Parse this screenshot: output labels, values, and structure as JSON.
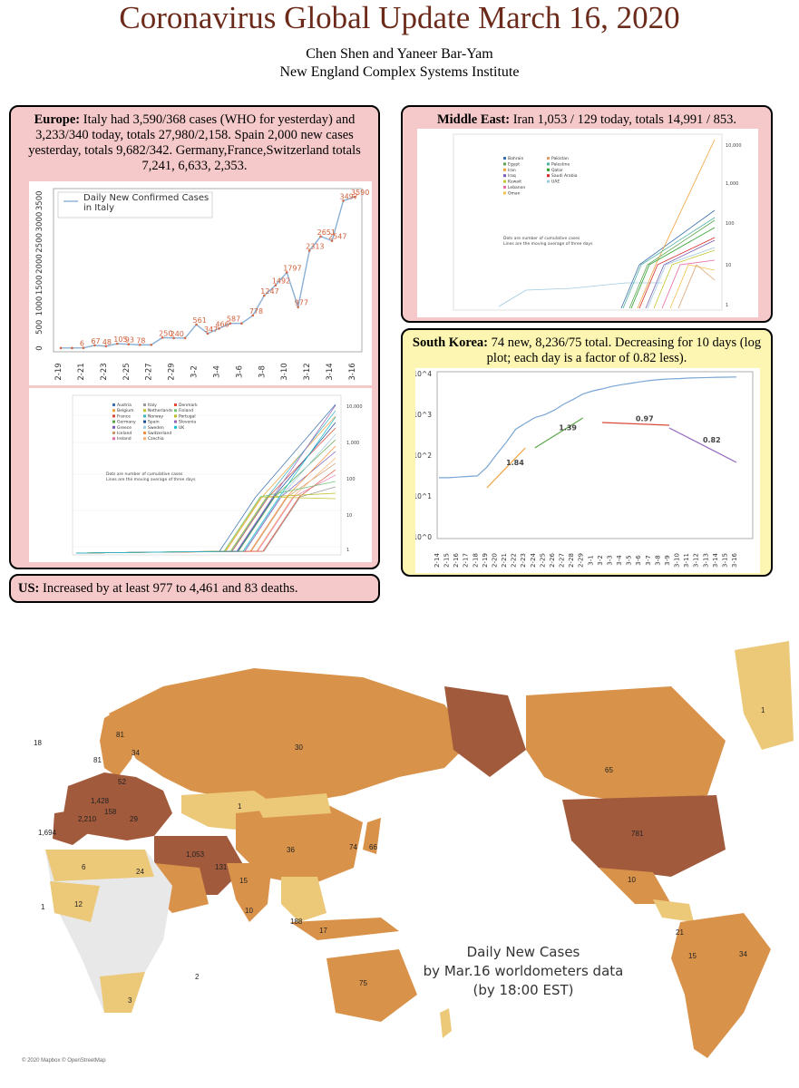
{
  "header": {
    "title": "Coronavirus Global Update March 16, 2020",
    "authors": "Chen Shen and Yaneer Bar-Yam",
    "institute": "New England Complex Systems Institute"
  },
  "europe": {
    "heading": "Europe:",
    "text": " Italy had 3,590/368 cases (WHO for yesterday) and 3,233/340 today, totals 27,980/2,158. Spain 2,000 new cases yesterday, totals 9,682/342. Germany,France,Switzerland totals 7,241, 6,633, 2,353."
  },
  "us": {
    "heading": "US:",
    "text": " Increased by at least 977 to 4,461 and 83 deaths."
  },
  "middle_east": {
    "heading": "Middle East:",
    "text": " Iran 1,053 / 129 today, totals 14,991 / 853."
  },
  "south_korea": {
    "heading": "South Korea:",
    "text": " 74 new, 8,236/75 total. Decreasing for 10 days (log plot; each day is a factor of 0.82 less)."
  },
  "chart_data": [
    {
      "type": "line",
      "legend": "Daily New Confirmed Cases in Italy",
      "x": [
        "2-19",
        "2-20",
        "2-21",
        "2-22",
        "2-23",
        "2-24",
        "2-25",
        "2-26",
        "2-27",
        "2-28",
        "2-29",
        "3-1",
        "3-2",
        "3-3",
        "3-4",
        "3-5",
        "3-6",
        "3-7",
        "3-8",
        "3-9",
        "3-10",
        "3-11",
        "3-12",
        "3-13",
        "3-14",
        "3-15",
        "3-16"
      ],
      "values": [
        3,
        3,
        6,
        67,
        48,
        105,
        93,
        78,
        78,
        250,
        240,
        240,
        561,
        347,
        466,
        587,
        587,
        778,
        1247,
        1492,
        1797,
        977,
        2313,
        2651,
        2547,
        3497,
        3590
      ],
      "labels": [
        "",
        "",
        "6",
        "67",
        "48",
        "105",
        "93",
        "78",
        "",
        "250",
        "240",
        "",
        "561",
        "347",
        "466",
        "587",
        "",
        "778",
        "1247",
        "1492",
        "1797",
        "977",
        "2313",
        "2651",
        "2547",
        "3497",
        "3590"
      ],
      "ylabels": [
        "0",
        "500",
        "1000",
        "1500",
        "2000",
        "2500",
        "3000",
        "3500"
      ],
      "xlabels": [
        "2-19",
        "2-21",
        "2-23",
        "2-25",
        "2-27",
        "2-29",
        "3-2",
        "3-4",
        "3-6",
        "3-8",
        "3-10",
        "3-12",
        "3-14",
        "3-16"
      ],
      "ylim": [
        0,
        3700
      ]
    },
    {
      "type": "line",
      "legend": [
        "Austria",
        "Belgium",
        "France",
        "Germany",
        "Greece",
        "Iceland",
        "Ireland",
        "Italy",
        "Netherlands",
        "Norway",
        "Spain",
        "Sweden",
        "Switzerland",
        "Czechia",
        "Denmark",
        "Finland",
        "Portugal",
        "Slovenia",
        "UK"
      ],
      "annotation": [
        "Dots are number of cumulative cases",
        "Lines are the moving average of three days"
      ],
      "right_ticks": [
        "10,000",
        "1,000",
        "100",
        "10",
        "1"
      ]
    },
    {
      "type": "line",
      "legend": [
        "Bahrain",
        "Egypt",
        "Iran",
        "Iraq",
        "Kuwait",
        "Lebanon",
        "Oman",
        "Pakistan",
        "Palestine",
        "Qatar",
        "Saudi Arabia",
        "UAE"
      ],
      "annotation": [
        "Dots are number of cumulative cases",
        "Lines are the moving average of three days"
      ],
      "right_ticks": [
        "10,000",
        "1,000",
        "100",
        "10",
        "1"
      ]
    },
    {
      "type": "line",
      "scale": "log",
      "x": [
        "2-14",
        "2-15",
        "2-16",
        "2-17",
        "2-18",
        "2-19",
        "2-20",
        "2-21",
        "2-22",
        "2-23",
        "2-24",
        "2-25",
        "2-26",
        "2-27",
        "2-28",
        "2-29",
        "3-1",
        "3-2",
        "3-3",
        "3-4",
        "3-5",
        "3-6",
        "3-7",
        "3-8",
        "3-9",
        "3-10",
        "3-11",
        "3-12",
        "3-13",
        "3-14",
        "3-15",
        "3-16"
      ],
      "cumulative": [
        28,
        28,
        29,
        30,
        31,
        51,
        104,
        204,
        433,
        602,
        833,
        977,
        1261,
        1766,
        2337,
        3150,
        3736,
        4212,
        4812,
        5328,
        5766,
        6284,
        6767,
        7134,
        7382,
        7513,
        7755,
        7869,
        7979,
        8086,
        8162,
        8236
      ],
      "ylabels": [
        "10^0",
        "10^1",
        "10^2",
        "10^3",
        "10^4"
      ],
      "fit_labels": [
        "1.84",
        "1.39",
        "0.97",
        "0.82"
      ]
    }
  ],
  "map": {
    "caption1": "Daily New Cases",
    "caption2": "by Mar.16 worldometers data",
    "caption3": "(by 18:00 EST)",
    "credit": "© 2020 Mapbox © OpenStreetMap",
    "labels": [
      "18",
      "81",
      "34",
      "81",
      "52",
      "1,428",
      "2,210",
      "1,694",
      "158",
      "29",
      "30",
      "1",
      "65",
      "781",
      "36",
      "1,053",
      "131",
      "15",
      "10",
      "188",
      "75",
      "17",
      "34",
      "21",
      "15",
      "10",
      "74",
      "66",
      "6",
      "24",
      "12",
      "1",
      "2",
      "3",
      "1"
    ]
  },
  "colors": {
    "title": "#6b2a1a",
    "pink": "#f5c9c9",
    "yellow": "#fdf6b2",
    "map_light": "#ecc879",
    "map_mid": "#d9924a",
    "map_dark": "#a25a3c"
  }
}
